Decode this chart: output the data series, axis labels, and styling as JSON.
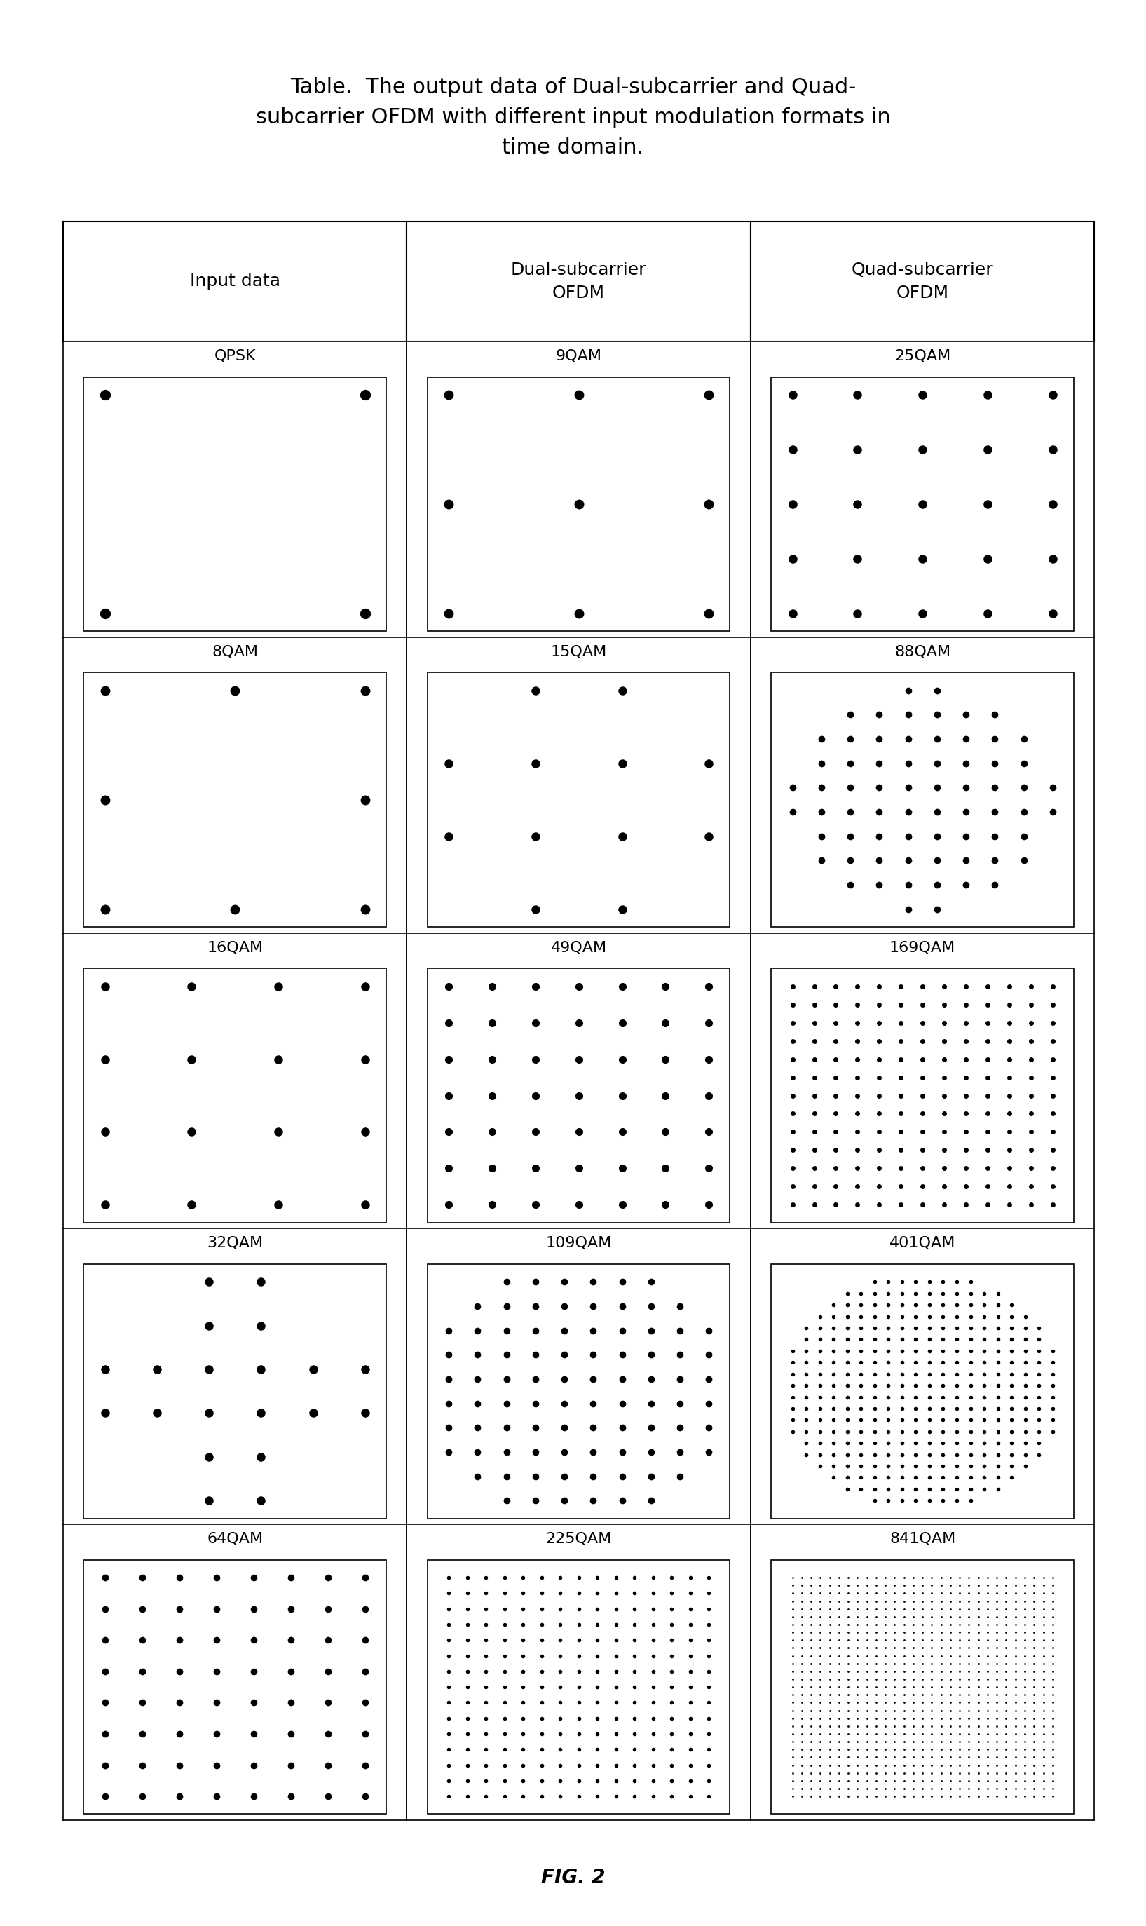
{
  "title": "Table.  The output data of Dual-subcarrier and Quad-\nsubcarrier OFDM with different input modulation formats in\ntime domain.",
  "fig_label": "FIG. 2",
  "col_headers": [
    "Input data",
    "Dual-subcarrier\nOFDM",
    "Quad-subcarrier\nOFDM"
  ],
  "row_labels": [
    [
      "QPSK",
      "9QAM",
      "25QAM"
    ],
    [
      "8QAM",
      "15QAM",
      "88QAM"
    ],
    [
      "16QAM",
      "49QAM",
      "169QAM"
    ],
    [
      "32QAM",
      "109QAM",
      "401QAM"
    ],
    [
      "64QAM",
      "225QAM",
      "841QAM"
    ]
  ],
  "bg_color": "#ffffff",
  "dot_color": "#000000",
  "title_fontsize": 22,
  "header_fontsize": 18,
  "label_fontsize": 16
}
